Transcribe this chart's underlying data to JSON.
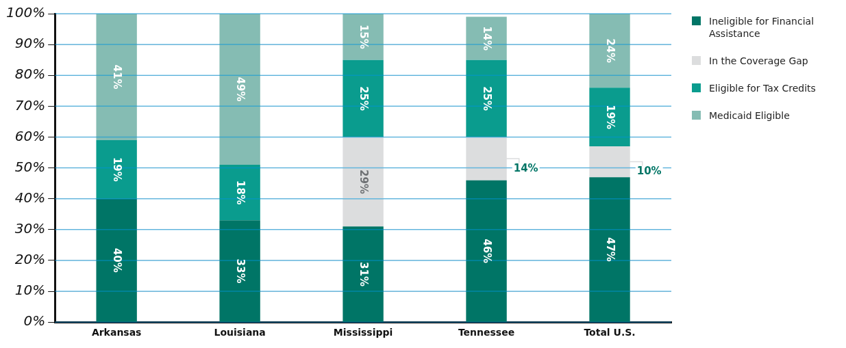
{
  "chart_data": {
    "type": "bar",
    "stacked": true,
    "categories": [
      "Arkansas",
      "Louisiana",
      "Mississippi",
      "Tennessee",
      "Total U.S."
    ],
    "series": [
      {
        "name": "Ineligible for Financial Assistance",
        "color": "#007566",
        "values": [
          40,
          33,
          31,
          46,
          47
        ],
        "value_labels": [
          "40%",
          "33%",
          "31%",
          "46%",
          "47%"
        ]
      },
      {
        "name": "In the Coverage Gap",
        "color": "#dcddde",
        "values": [
          null,
          null,
          29,
          14,
          10
        ],
        "value_labels": [
          null,
          null,
          "29%",
          "14%",
          "10%"
        ]
      },
      {
        "name": "Eligible for Tax Credits",
        "color": "#0a9c8e",
        "values": [
          19,
          18,
          25,
          25,
          19
        ],
        "value_labels": [
          "19%",
          "18%",
          "25%",
          "25%",
          "19%"
        ]
      },
      {
        "name": "Medicaid Eligible",
        "color": "#85bcb3",
        "values": [
          41,
          49,
          15,
          14,
          24
        ],
        "value_labels": [
          "41%",
          "49%",
          "15%",
          "14%",
          "24%"
        ]
      }
    ],
    "ylim": [
      0,
      100
    ],
    "yticks": [
      {
        "value": 0,
        "label": "0%"
      },
      {
        "value": 10,
        "label": "10%"
      },
      {
        "value": 20,
        "label": "20%"
      },
      {
        "value": 30,
        "label": "30%"
      },
      {
        "value": 40,
        "label": "40%"
      },
      {
        "value": 50,
        "label": "50%"
      },
      {
        "value": 60,
        "label": "60%"
      },
      {
        "value": 70,
        "label": "70%"
      },
      {
        "value": 80,
        "label": "80%"
      },
      {
        "value": 90,
        "label": "90%"
      },
      {
        "value": 100,
        "label": "100%"
      }
    ],
    "grid": "y",
    "legend": "top right"
  }
}
